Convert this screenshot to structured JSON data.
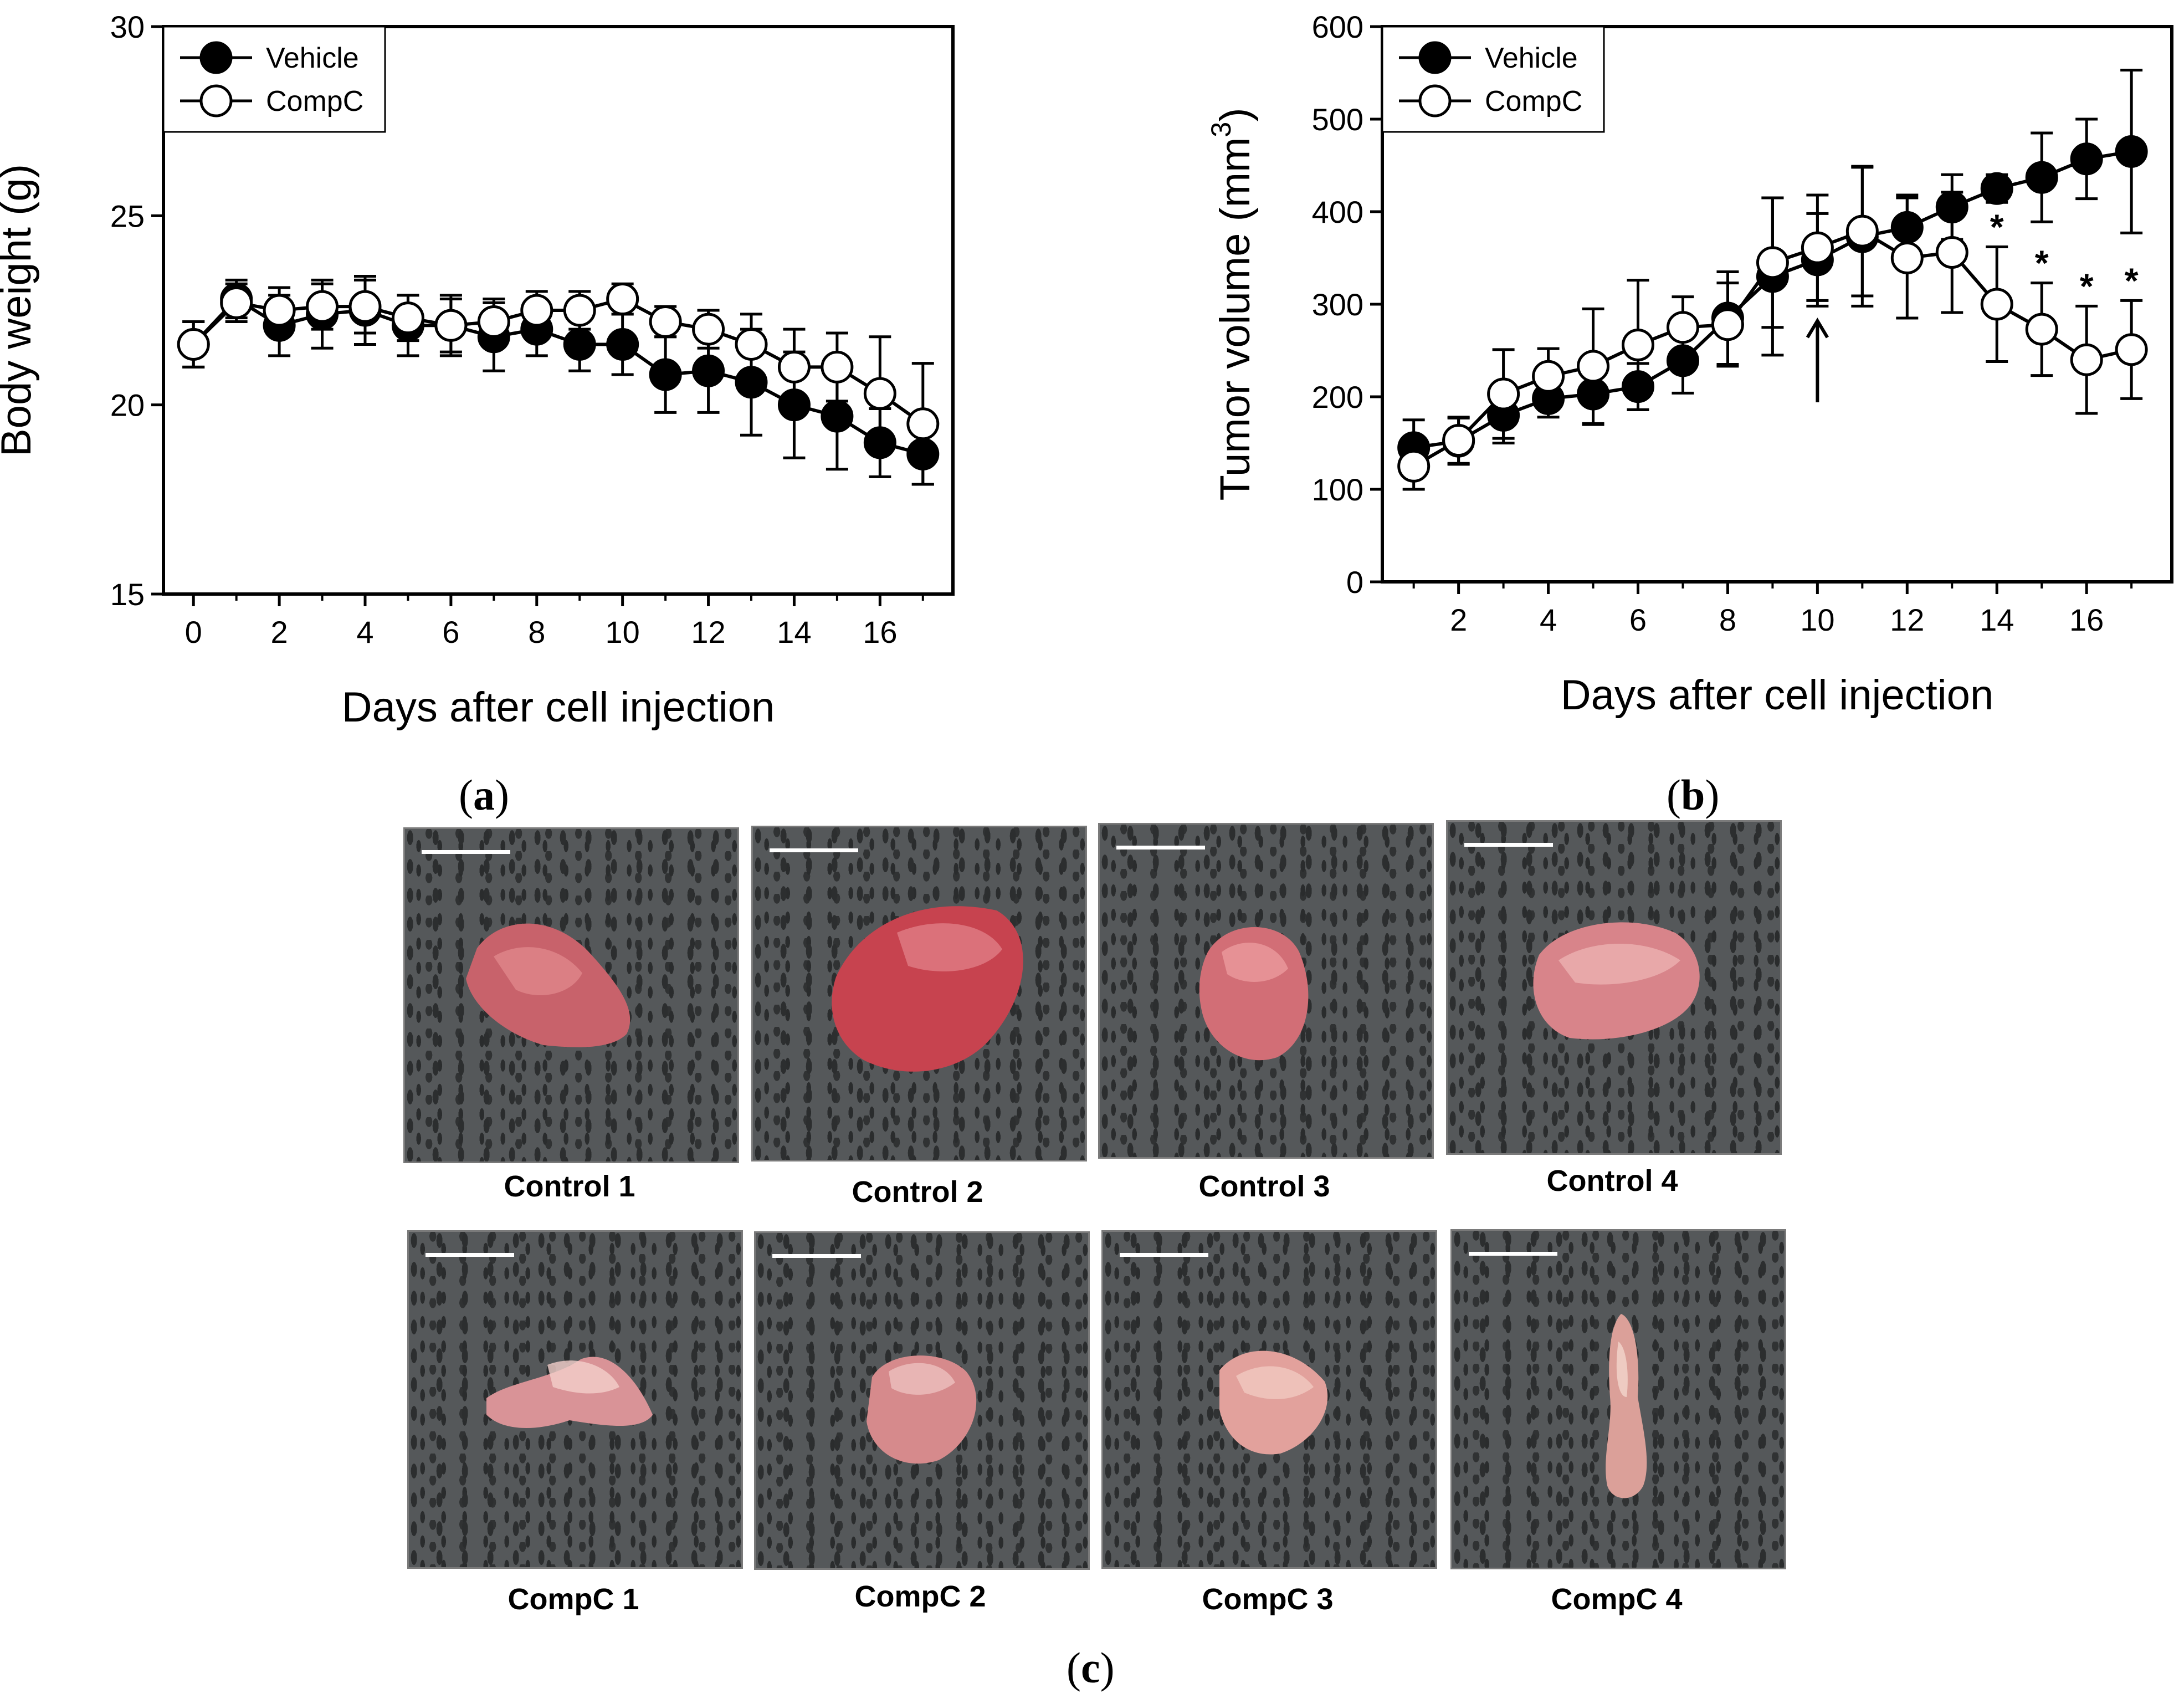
{
  "chart_data": [
    {
      "id": "a",
      "type": "line",
      "panel_label": "a",
      "xlabel": "Days after cell injection",
      "ylabel": "Body weight (g)",
      "xlim": [
        -0.7,
        17.7
      ],
      "ylim": [
        15,
        30
      ],
      "xticks": [
        0,
        2,
        4,
        6,
        8,
        10,
        12,
        14,
        16
      ],
      "yticks": [
        15,
        20,
        25,
        30
      ],
      "legend_position": "top-left",
      "series": [
        {
          "name": "Vehicle",
          "marker": "filled-circle",
          "x": [
            0,
            1,
            2,
            3,
            4,
            5,
            6,
            7,
            8,
            9,
            10,
            11,
            12,
            13,
            14,
            15,
            16,
            17
          ],
          "y": [
            21.6,
            22.8,
            22.1,
            22.4,
            22.5,
            22.1,
            22.1,
            21.8,
            22.0,
            21.6,
            21.6,
            20.8,
            20.9,
            20.6,
            20.0,
            19.7,
            19.0,
            18.7
          ],
          "err": [
            0.6,
            0.5,
            0.8,
            0.9,
            0.9,
            0.8,
            0.8,
            0.9,
            0.7,
            0.7,
            0.8,
            1.0,
            1.1,
            1.4,
            1.4,
            1.4,
            0.9,
            0.8
          ]
        },
        {
          "name": "CompC",
          "marker": "open-circle",
          "x": [
            0,
            1,
            2,
            3,
            4,
            5,
            6,
            7,
            8,
            9,
            10,
            11,
            12,
            13,
            14,
            15,
            16,
            17
          ],
          "y": [
            21.6,
            22.7,
            22.5,
            22.6,
            22.6,
            22.3,
            22.1,
            22.2,
            22.5,
            22.5,
            22.8,
            22.2,
            22.0,
            21.6,
            21.0,
            21.0,
            20.3,
            19.5
          ],
          "err": [
            0.6,
            0.5,
            0.6,
            0.6,
            0.7,
            0.6,
            0.7,
            0.6,
            0.5,
            0.5,
            0.4,
            0.4,
            0.5,
            0.8,
            1.0,
            0.9,
            1.5,
            1.6
          ]
        }
      ]
    },
    {
      "id": "b",
      "type": "line",
      "panel_label": "b",
      "xlabel": "Days after cell injection",
      "ylabel": "Tumor volume (mm",
      "ylabel_superscript": "3",
      "ylabel_close": ")",
      "xlim": [
        0.3,
        17.9
      ],
      "ylim": [
        0,
        600
      ],
      "xticks": [
        2,
        4,
        6,
        8,
        10,
        12,
        14,
        16
      ],
      "yticks": [
        0,
        100,
        200,
        300,
        400,
        500,
        600
      ],
      "legend_position": "top-left",
      "annotations": {
        "arrow_day": 10,
        "asterisk": "*",
        "asterisk_days": [
          14,
          15,
          16,
          17
        ]
      },
      "series": [
        {
          "name": "Vehicle",
          "marker": "filled-circle",
          "x": [
            1,
            2,
            3,
            4,
            5,
            6,
            7,
            8,
            9,
            10,
            11,
            12,
            13,
            14,
            15,
            16,
            17
          ],
          "y": [
            145,
            152,
            180,
            198,
            203,
            211,
            239,
            285,
            330,
            348,
            373,
            383,
            405,
            425,
            437,
            457,
            465
          ],
          "err": [
            30,
            25,
            30,
            20,
            33,
            25,
            35,
            50,
            85,
            50,
            75,
            35,
            35,
            15,
            48,
            43,
            88
          ]
        },
        {
          "name": "CompC",
          "marker": "open-circle",
          "x": [
            1,
            2,
            3,
            4,
            5,
            6,
            7,
            8,
            9,
            10,
            11,
            12,
            13,
            14,
            15,
            16,
            17
          ],
          "y": [
            125,
            153,
            203,
            222,
            233,
            256,
            275,
            278,
            345,
            361,
            379,
            350,
            356,
            300,
            273,
            240,
            251
          ],
          "err": [
            25,
            25,
            48,
            30,
            62,
            70,
            33,
            45,
            70,
            57,
            70,
            65,
            65,
            62,
            50,
            58,
            53
          ]
        }
      ]
    }
  ],
  "panel_c": {
    "label": "c",
    "controls": [
      "Control 1",
      "Control 2",
      "Control 3",
      "Control 4"
    ],
    "compc": [
      "CompC 1",
      "CompC 2",
      "CompC 3",
      "CompC 4"
    ]
  }
}
